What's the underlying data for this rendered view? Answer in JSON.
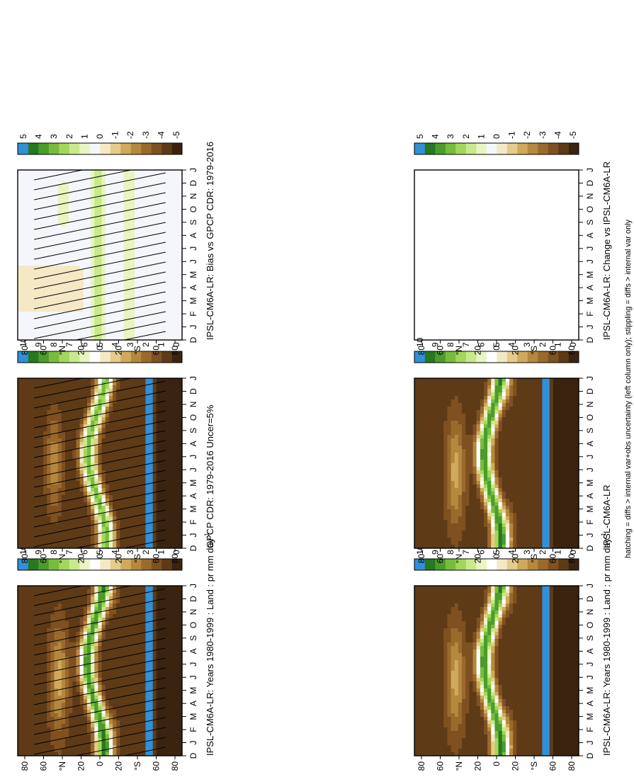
{
  "footnote": "hatching = diffs > internal var+obs uncertainty (left column only); stippling = diffs > internal var only",
  "colors": {
    "precip_levels": [
      "#3a2410",
      "#5e3a17",
      "#7f5020",
      "#9a6a2c",
      "#b5883e",
      "#cfaa5c",
      "#e6cc88",
      "#f5e8c4",
      "#ffffff",
      "#e8f5c0",
      "#c8ea8a",
      "#a2d85a",
      "#77bd3c",
      "#4c9c2c",
      "#27781f",
      "#3090d8"
    ],
    "diff_levels": [
      "#3a2410",
      "#5e3a17",
      "#7f5020",
      "#9a6a2c",
      "#b5883e",
      "#cfaa5c",
      "#e6cc88",
      "#f5e8c4",
      "#f4f6fb",
      "#e8f5c0",
      "#c8ea8a",
      "#a2d85a",
      "#77bd3c",
      "#4c9c2c",
      "#27781f",
      "#3090d8"
    ]
  },
  "chart_data": [
    {
      "type": "heatmap",
      "title": "IPSL-CM6A-LR: Years 1980-1999 : Land : pr mm day",
      "title_sup": "-1",
      "x_months": [
        "D",
        "J",
        "F",
        "M",
        "A",
        "M",
        "J",
        "J",
        "A",
        "S",
        "O",
        "N",
        "D",
        "J"
      ],
      "y_ticks": [
        "80",
        "60",
        "°N",
        "20",
        "0",
        "20",
        "°S",
        "60",
        "80"
      ],
      "colorbar_ticks": [
        "10",
        "9",
        "8",
        "7",
        "6",
        "5",
        "4",
        "3",
        "2",
        "1",
        "0"
      ],
      "kind": "precip",
      "hatched": true
    },
    {
      "type": "heatmap",
      "title": "GPCP CDR: 1979-2016 Uncer=5%",
      "x_months": [
        "D",
        "J",
        "F",
        "M",
        "A",
        "M",
        "J",
        "J",
        "A",
        "S",
        "O",
        "N",
        "D",
        "J"
      ],
      "y_ticks": [
        "80",
        "60",
        "°N",
        "20",
        "0",
        "20",
        "°S",
        "60",
        "80"
      ],
      "colorbar_ticks": [
        "10",
        "9",
        "8",
        "7",
        "6",
        "5",
        "4",
        "3",
        "2",
        "1",
        "0"
      ],
      "kind": "obs",
      "hatched": true
    },
    {
      "type": "heatmap",
      "title": "IPSL-CM6A-LR: Bias vs GPCP CDR: 1979-2016",
      "x_months": [
        "D",
        "J",
        "F",
        "M",
        "A",
        "M",
        "J",
        "J",
        "A",
        "S",
        "O",
        "N",
        "D",
        "J"
      ],
      "y_ticks": [
        "80",
        "60",
        "°N",
        "20",
        "0",
        "20",
        "°S",
        "60",
        "80"
      ],
      "colorbar_ticks": [
        "5",
        "4",
        "3",
        "2",
        "1",
        "0",
        "-1",
        "-2",
        "-3",
        "-4",
        "-5"
      ],
      "kind": "bias",
      "hatched": true
    },
    {
      "type": "heatmap",
      "title": "IPSL-CM6A-LR: Years 1980-1999 : Land : pr mm day",
      "title_sup": "-1",
      "x_months": [
        "D",
        "J",
        "F",
        "M",
        "A",
        "M",
        "J",
        "J",
        "A",
        "S",
        "O",
        "N",
        "D",
        "J"
      ],
      "y_ticks": [
        "80",
        "60",
        "°N",
        "20",
        "0",
        "20",
        "°S",
        "60",
        "80"
      ],
      "colorbar_ticks": [
        "10",
        "9",
        "8",
        "7",
        "6",
        "5",
        "4",
        "3",
        "2",
        "1",
        "0"
      ],
      "kind": "precip",
      "hatched": false
    },
    {
      "type": "heatmap",
      "title": "IPSL-CM6A-LR",
      "x_months": [
        "D",
        "J",
        "F",
        "M",
        "A",
        "M",
        "J",
        "J",
        "A",
        "S",
        "O",
        "N",
        "D",
        "J"
      ],
      "y_ticks": [
        "80",
        "60",
        "°N",
        "20",
        "0",
        "20",
        "°S",
        "60",
        "80"
      ],
      "colorbar_ticks": [
        "10",
        "9",
        "8",
        "7",
        "6",
        "5",
        "4",
        "3",
        "2",
        "1",
        "0"
      ],
      "kind": "precip",
      "hatched": false
    },
    {
      "type": "heatmap",
      "title": "IPSL-CM6A-LR: Change vs IPSL-CM6A-LR",
      "x_months": [
        "D",
        "J",
        "F",
        "M",
        "A",
        "M",
        "J",
        "J",
        "A",
        "S",
        "O",
        "N",
        "D",
        "J"
      ],
      "y_ticks": [
        "80",
        "60",
        "°N",
        "20",
        "0",
        "20",
        "°S",
        "60",
        "80"
      ],
      "colorbar_ticks": [
        "5",
        "4",
        "3",
        "2",
        "1",
        "0",
        "-1",
        "-2",
        "-3",
        "-4",
        "-5"
      ],
      "kind": "empty",
      "hatched": false
    }
  ]
}
